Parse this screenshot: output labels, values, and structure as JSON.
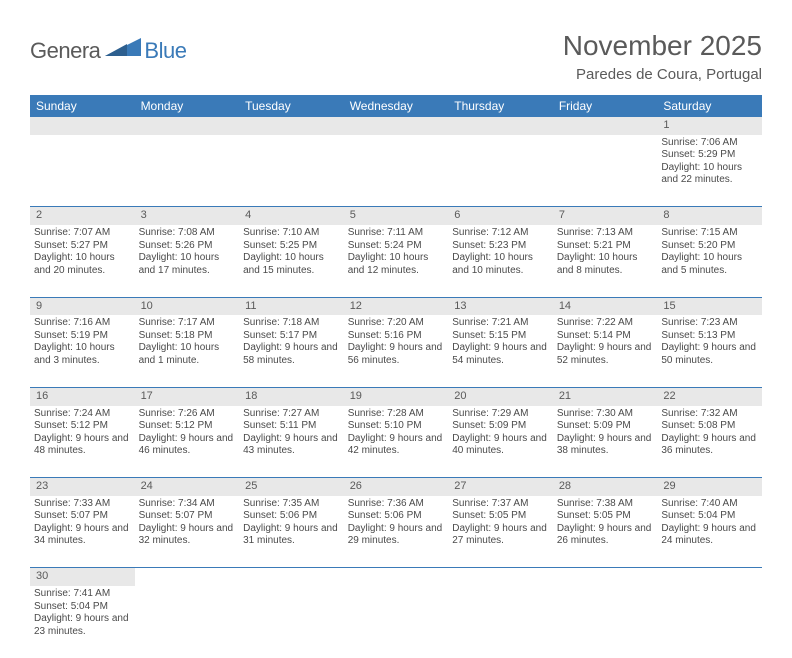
{
  "logo": {
    "text_general": "Genera",
    "text_blue": "Blue",
    "triangle_color": "#3a7ab8",
    "text_gray_color": "#5a5a5a"
  },
  "title": "November 2025",
  "location": "Paredes de Coura, Portugal",
  "colors": {
    "header_bg": "#3a7ab8",
    "header_text": "#ffffff",
    "daynum_bg": "#e8e8e8",
    "text": "#4a4a4a",
    "border": "#3a7ab8"
  },
  "day_headers": [
    "Sunday",
    "Monday",
    "Tuesday",
    "Wednesday",
    "Thursday",
    "Friday",
    "Saturday"
  ],
  "weeks": [
    {
      "nums": [
        "",
        "",
        "",
        "",
        "",
        "",
        "1"
      ],
      "cells": [
        null,
        null,
        null,
        null,
        null,
        null,
        {
          "sunrise": "Sunrise: 7:06 AM",
          "sunset": "Sunset: 5:29 PM",
          "daylight": "Daylight: 10 hours and 22 minutes."
        }
      ]
    },
    {
      "nums": [
        "2",
        "3",
        "4",
        "5",
        "6",
        "7",
        "8"
      ],
      "cells": [
        {
          "sunrise": "Sunrise: 7:07 AM",
          "sunset": "Sunset: 5:27 PM",
          "daylight": "Daylight: 10 hours and 20 minutes."
        },
        {
          "sunrise": "Sunrise: 7:08 AM",
          "sunset": "Sunset: 5:26 PM",
          "daylight": "Daylight: 10 hours and 17 minutes."
        },
        {
          "sunrise": "Sunrise: 7:10 AM",
          "sunset": "Sunset: 5:25 PM",
          "daylight": "Daylight: 10 hours and 15 minutes."
        },
        {
          "sunrise": "Sunrise: 7:11 AM",
          "sunset": "Sunset: 5:24 PM",
          "daylight": "Daylight: 10 hours and 12 minutes."
        },
        {
          "sunrise": "Sunrise: 7:12 AM",
          "sunset": "Sunset: 5:23 PM",
          "daylight": "Daylight: 10 hours and 10 minutes."
        },
        {
          "sunrise": "Sunrise: 7:13 AM",
          "sunset": "Sunset: 5:21 PM",
          "daylight": "Daylight: 10 hours and 8 minutes."
        },
        {
          "sunrise": "Sunrise: 7:15 AM",
          "sunset": "Sunset: 5:20 PM",
          "daylight": "Daylight: 10 hours and 5 minutes."
        }
      ]
    },
    {
      "nums": [
        "9",
        "10",
        "11",
        "12",
        "13",
        "14",
        "15"
      ],
      "cells": [
        {
          "sunrise": "Sunrise: 7:16 AM",
          "sunset": "Sunset: 5:19 PM",
          "daylight": "Daylight: 10 hours and 3 minutes."
        },
        {
          "sunrise": "Sunrise: 7:17 AM",
          "sunset": "Sunset: 5:18 PM",
          "daylight": "Daylight: 10 hours and 1 minute."
        },
        {
          "sunrise": "Sunrise: 7:18 AM",
          "sunset": "Sunset: 5:17 PM",
          "daylight": "Daylight: 9 hours and 58 minutes."
        },
        {
          "sunrise": "Sunrise: 7:20 AM",
          "sunset": "Sunset: 5:16 PM",
          "daylight": "Daylight: 9 hours and 56 minutes."
        },
        {
          "sunrise": "Sunrise: 7:21 AM",
          "sunset": "Sunset: 5:15 PM",
          "daylight": "Daylight: 9 hours and 54 minutes."
        },
        {
          "sunrise": "Sunrise: 7:22 AM",
          "sunset": "Sunset: 5:14 PM",
          "daylight": "Daylight: 9 hours and 52 minutes."
        },
        {
          "sunrise": "Sunrise: 7:23 AM",
          "sunset": "Sunset: 5:13 PM",
          "daylight": "Daylight: 9 hours and 50 minutes."
        }
      ]
    },
    {
      "nums": [
        "16",
        "17",
        "18",
        "19",
        "20",
        "21",
        "22"
      ],
      "cells": [
        {
          "sunrise": "Sunrise: 7:24 AM",
          "sunset": "Sunset: 5:12 PM",
          "daylight": "Daylight: 9 hours and 48 minutes."
        },
        {
          "sunrise": "Sunrise: 7:26 AM",
          "sunset": "Sunset: 5:12 PM",
          "daylight": "Daylight: 9 hours and 46 minutes."
        },
        {
          "sunrise": "Sunrise: 7:27 AM",
          "sunset": "Sunset: 5:11 PM",
          "daylight": "Daylight: 9 hours and 43 minutes."
        },
        {
          "sunrise": "Sunrise: 7:28 AM",
          "sunset": "Sunset: 5:10 PM",
          "daylight": "Daylight: 9 hours and 42 minutes."
        },
        {
          "sunrise": "Sunrise: 7:29 AM",
          "sunset": "Sunset: 5:09 PM",
          "daylight": "Daylight: 9 hours and 40 minutes."
        },
        {
          "sunrise": "Sunrise: 7:30 AM",
          "sunset": "Sunset: 5:09 PM",
          "daylight": "Daylight: 9 hours and 38 minutes."
        },
        {
          "sunrise": "Sunrise: 7:32 AM",
          "sunset": "Sunset: 5:08 PM",
          "daylight": "Daylight: 9 hours and 36 minutes."
        }
      ]
    },
    {
      "nums": [
        "23",
        "24",
        "25",
        "26",
        "27",
        "28",
        "29"
      ],
      "cells": [
        {
          "sunrise": "Sunrise: 7:33 AM",
          "sunset": "Sunset: 5:07 PM",
          "daylight": "Daylight: 9 hours and 34 minutes."
        },
        {
          "sunrise": "Sunrise: 7:34 AM",
          "sunset": "Sunset: 5:07 PM",
          "daylight": "Daylight: 9 hours and 32 minutes."
        },
        {
          "sunrise": "Sunrise: 7:35 AM",
          "sunset": "Sunset: 5:06 PM",
          "daylight": "Daylight: 9 hours and 31 minutes."
        },
        {
          "sunrise": "Sunrise: 7:36 AM",
          "sunset": "Sunset: 5:06 PM",
          "daylight": "Daylight: 9 hours and 29 minutes."
        },
        {
          "sunrise": "Sunrise: 7:37 AM",
          "sunset": "Sunset: 5:05 PM",
          "daylight": "Daylight: 9 hours and 27 minutes."
        },
        {
          "sunrise": "Sunrise: 7:38 AM",
          "sunset": "Sunset: 5:05 PM",
          "daylight": "Daylight: 9 hours and 26 minutes."
        },
        {
          "sunrise": "Sunrise: 7:40 AM",
          "sunset": "Sunset: 5:04 PM",
          "daylight": "Daylight: 9 hours and 24 minutes."
        }
      ]
    },
    {
      "nums": [
        "30",
        "",
        "",
        "",
        "",
        "",
        ""
      ],
      "cells": [
        {
          "sunrise": "Sunrise: 7:41 AM",
          "sunset": "Sunset: 5:04 PM",
          "daylight": "Daylight: 9 hours and 23 minutes."
        },
        null,
        null,
        null,
        null,
        null,
        null
      ]
    }
  ]
}
